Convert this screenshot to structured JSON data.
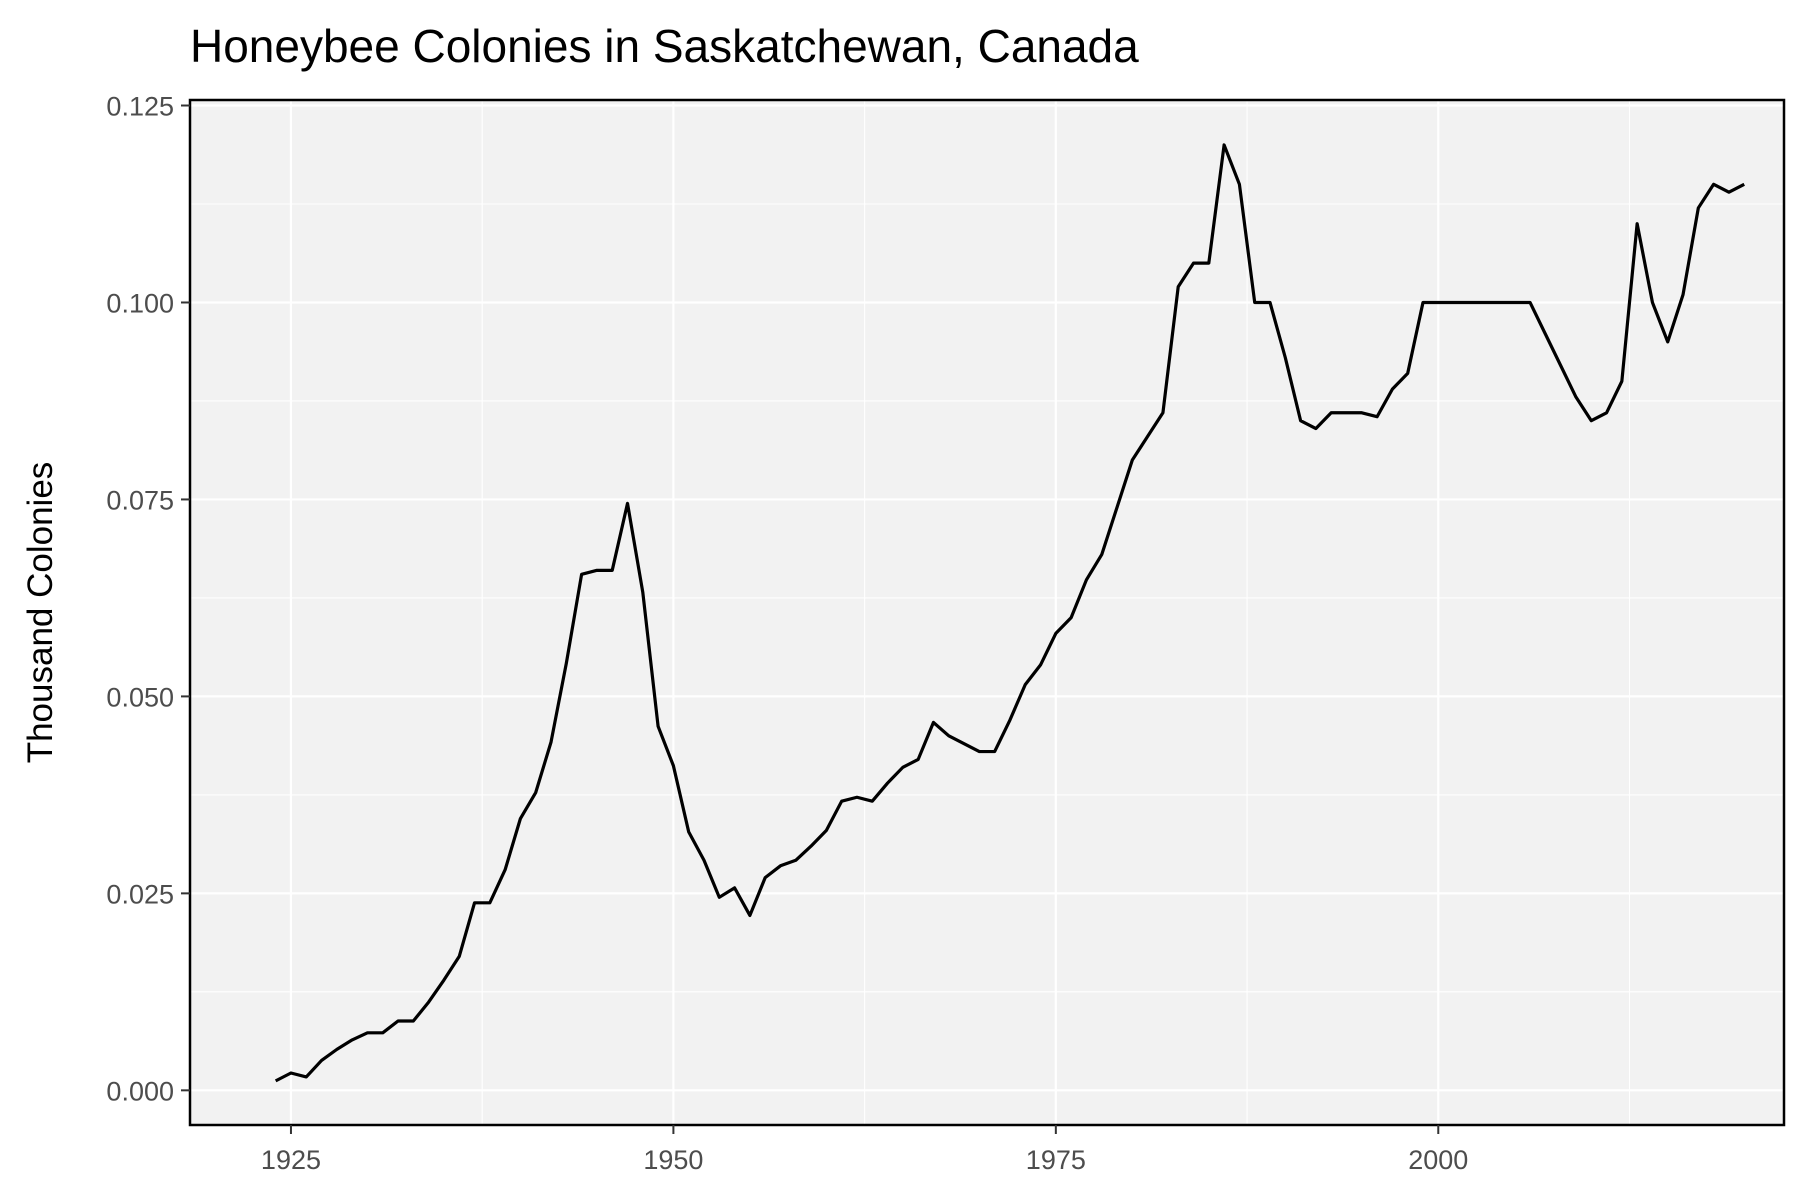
{
  "chart_data": {
    "type": "line",
    "title": "Honeybee Colonies in Saskatchewan, Canada",
    "xlabel": "",
    "ylabel": "Thousand Colonies",
    "xlim": [
      1918.4,
      2022.6
    ],
    "ylim": [
      -0.0044,
      0.1257
    ],
    "x_ticks": [
      1925,
      1950,
      1975,
      2000
    ],
    "y_ticks": [
      0.0,
      0.025,
      0.05,
      0.075,
      0.1,
      0.125
    ],
    "y_tick_labels": [
      "0.000",
      "0.025",
      "0.050",
      "0.075",
      "0.100",
      "0.125"
    ],
    "grid": true,
    "legend": "none",
    "colors": {
      "panel_bg": "#f2f2f2",
      "grid": "#ffffff",
      "line": "#000000",
      "border": "#000000",
      "tick_text": "#4d4d4d"
    },
    "series": [
      {
        "x": [
          1924,
          1925,
          1926,
          1927,
          1928,
          1929,
          1930,
          1931,
          1932,
          1933,
          1934,
          1935,
          1936,
          1937,
          1938,
          1939,
          1940,
          1941,
          1942,
          1943,
          1944,
          1945,
          1946,
          1947,
          1948,
          1949,
          1950,
          1951,
          1952,
          1953,
          1954,
          1955,
          1956,
          1957,
          1958,
          1959,
          1960,
          1961,
          1962,
          1963,
          1964,
          1965,
          1966,
          1967,
          1968,
          1969,
          1970,
          1971,
          1972,
          1973,
          1974,
          1975,
          1976,
          1977,
          1978,
          1979,
          1980,
          1981,
          1982,
          1983,
          1984,
          1985,
          1986,
          1987,
          1988,
          1989,
          1990,
          1991,
          1992,
          1993,
          1994,
          1995,
          1996,
          1997,
          1998,
          1999,
          2000,
          2001,
          2002,
          2003,
          2004,
          2005,
          2006,
          2007,
          2008,
          2009,
          2010,
          2011,
          2012,
          2013,
          2014,
          2015,
          2016,
          2017,
          2018,
          2019,
          2020
        ],
        "y": [
          0.0012,
          0.0022,
          0.0017,
          0.0038,
          0.0052,
          0.0064,
          0.0073,
          0.0073,
          0.0088,
          0.0088,
          0.0112,
          0.014,
          0.017,
          0.0238,
          0.0238,
          0.028,
          0.0345,
          0.0378,
          0.0442,
          0.0542,
          0.0655,
          0.066,
          0.066,
          0.0745,
          0.0632,
          0.0462,
          0.0412,
          0.0328,
          0.0292,
          0.0245,
          0.0257,
          0.0222,
          0.027,
          0.0285,
          0.0292,
          0.031,
          0.033,
          0.0367,
          0.0372,
          0.0367,
          0.039,
          0.041,
          0.042,
          0.0467,
          0.045,
          0.044,
          0.043,
          0.043,
          0.047,
          0.0515,
          0.054,
          0.058,
          0.06,
          0.0648,
          0.068,
          0.074,
          0.08,
          0.083,
          0.086,
          0.102,
          0.105,
          0.105,
          0.12,
          0.115,
          0.1,
          0.1,
          0.093,
          0.085,
          0.084,
          0.086,
          0.086,
          0.086,
          0.0855,
          0.089,
          0.091,
          0.1,
          0.1,
          0.1,
          0.1,
          0.1,
          0.1,
          0.1,
          0.1,
          0.096,
          0.092,
          0.088,
          0.085,
          0.086,
          0.09,
          0.11,
          0.1,
          0.095,
          0.101,
          0.112,
          0.115,
          0.114,
          0.115
        ]
      }
    ]
  }
}
